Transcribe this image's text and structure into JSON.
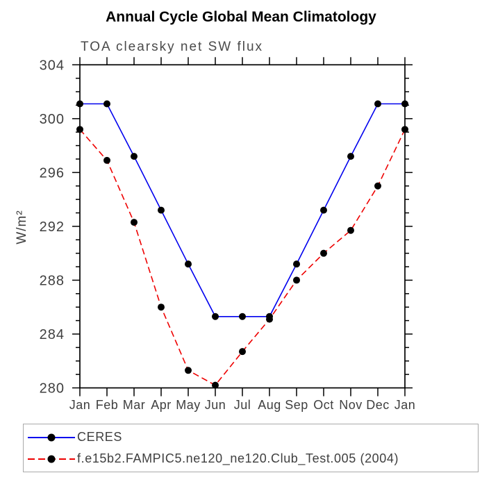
{
  "chart_data": {
    "type": "line",
    "title": "Annual Cycle Global Mean Climatology",
    "subtitle": "TOA clearsky net SW flux",
    "ylabel": "W/m²",
    "x_tick_labels": [
      "Jan",
      "Feb",
      "Mar",
      "Apr",
      "May",
      "Jun",
      "Jul",
      "Aug",
      "Sep",
      "Oct",
      "Nov",
      "Dec",
      "Jan"
    ],
    "ylim": [
      280,
      304
    ],
    "y_major_ticks": [
      280,
      284,
      288,
      292,
      296,
      300,
      304
    ],
    "y_minor_step": 1,
    "grid": false,
    "legend_position": "bottom-left",
    "axis_color": "#000000",
    "label_color": "#3f3f3f",
    "series": [
      {
        "name": "CERES",
        "color": "#0000ee",
        "line_style": "solid",
        "marker": "filled-circle",
        "marker_color": "#000000",
        "values": [
          301.1,
          301.1,
          297.2,
          293.2,
          289.2,
          285.3,
          285.3,
          285.3,
          289.2,
          293.2,
          297.2,
          301.1,
          301.1
        ]
      },
      {
        "name": "f.e15b2.FAMPIC5.ne120_ne120.Club_Test.005 (2004)",
        "color": "#ee0000",
        "line_style": "dashed",
        "marker": "filled-circle",
        "marker_color": "#000000",
        "values": [
          299.2,
          296.9,
          292.3,
          286.0,
          281.3,
          280.2,
          282.7,
          285.1,
          288.0,
          290.0,
          291.7,
          295.0,
          299.2
        ]
      }
    ]
  }
}
